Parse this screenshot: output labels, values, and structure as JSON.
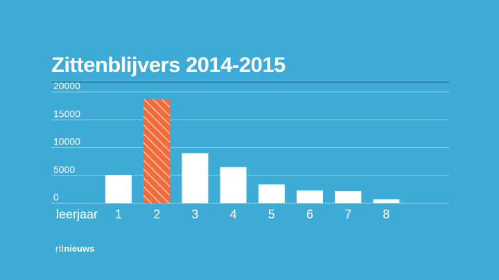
{
  "chart_data": {
    "type": "bar",
    "title": "Zittenblijvers 2014-2015",
    "xlabel": "leerjaar",
    "ylabel": "",
    "categories": [
      "1",
      "2",
      "3",
      "4",
      "5",
      "6",
      "7",
      "8"
    ],
    "values": [
      5100,
      18700,
      9000,
      6500,
      3400,
      2300,
      2200,
      700
    ],
    "highlight_category": "2",
    "ylim": [
      0,
      20000
    ],
    "yticks": [
      0,
      5000,
      10000,
      15000,
      20000
    ],
    "grid": true,
    "legend": "none",
    "colors": {
      "background": "#3eabd6",
      "bar": "#ffffff",
      "highlight": "#f26b3a",
      "hatch": "#ffffff",
      "grid": "#8fd0ea",
      "axis_top": "#1f6f8f",
      "text": "#ffffff"
    }
  },
  "branding": {
    "logo_part1": "rtl",
    "logo_part2": "nieuws"
  }
}
